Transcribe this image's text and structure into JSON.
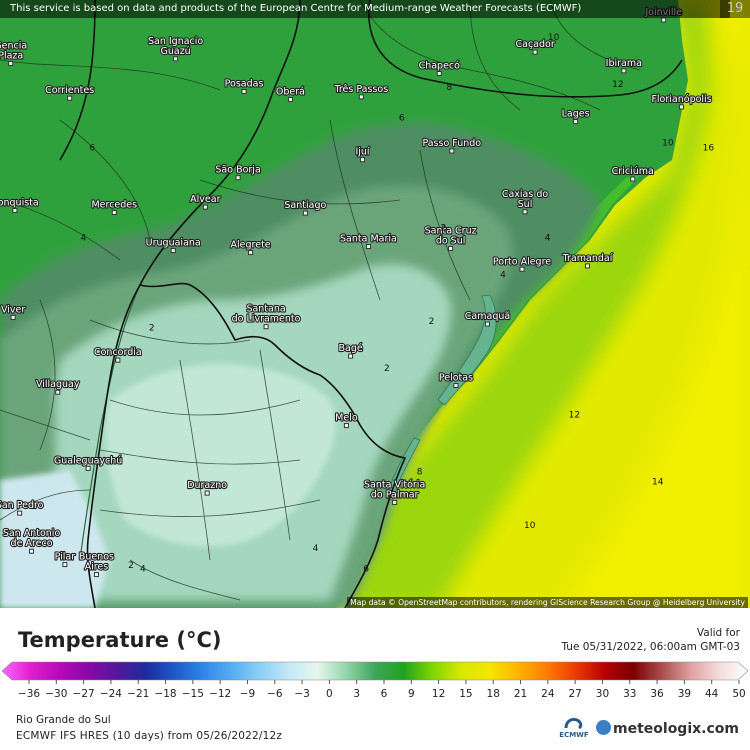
{
  "header": {
    "notice": "This service is based on data and products of the European Centre for Medium-range Weather Forecasts (ECMWF)",
    "corner_number": "19",
    "attribution": "Map data © OpenStreetMap contributors, rendering GIScience Research Group @ Heidelberg University"
  },
  "colors": {
    "ocean_warm": "#d8e600",
    "ocean_yellow": "#f1ee00",
    "coast_band": "#39b729",
    "land_green": "#2f9f3f",
    "land_dark": "#3f8a5a",
    "cold_core": "#a4d7bd",
    "cold_light": "#c2e7d6",
    "border": "#1a1a1a"
  },
  "cities": [
    {
      "name": "San Ignacio\nGuazú",
      "lon": -57.05,
      "lat": -26.88
    },
    {
      "name": "Posadas",
      "lon": -55.9,
      "lat": -27.37
    },
    {
      "name": "Oberá",
      "lon": -55.12,
      "lat": -27.49
    },
    {
      "name": "Três Passos",
      "lon": -53.93,
      "lat": -27.45
    },
    {
      "name": "Chapecó",
      "lon": -52.62,
      "lat": -27.1
    },
    {
      "name": "Caçador",
      "lon": -51.01,
      "lat": -26.78
    },
    {
      "name": "Joinville",
      "lon": -48.85,
      "lat": -26.3
    },
    {
      "name": "Ibirama",
      "lon": -49.52,
      "lat": -27.06
    },
    {
      "name": "Florianópolis",
      "lon": -48.55,
      "lat": -27.6
    },
    {
      "name": "Lages",
      "lon": -50.33,
      "lat": -27.82
    },
    {
      "name": "Criciúma",
      "lon": -49.37,
      "lat": -28.68
    },
    {
      "name": "Corrientes",
      "lon": -58.83,
      "lat": -27.47
    },
    {
      "name": "Passo Fundo",
      "lon": -52.41,
      "lat": -28.26
    },
    {
      "name": "Ijuí",
      "lon": -53.91,
      "lat": -28.39
    },
    {
      "name": "São Borja",
      "lon": -56.0,
      "lat": -28.66
    },
    {
      "name": "Caxias do\nSul",
      "lon": -51.18,
      "lat": -29.17
    },
    {
      "name": "Mercedes",
      "lon": -58.08,
      "lat": -29.18
    },
    {
      "name": "Alvear",
      "lon": -56.55,
      "lat": -29.1
    },
    {
      "name": "Santiago",
      "lon": -54.87,
      "lat": -29.19
    },
    {
      "name": "Santa Maria",
      "lon": -53.81,
      "lat": -29.69
    },
    {
      "name": "Santa Cruz\ndo Sul",
      "lon": -52.43,
      "lat": -29.72
    },
    {
      "name": "Uruguaiana",
      "lon": -57.09,
      "lat": -29.75
    },
    {
      "name": "Alegrete",
      "lon": -55.79,
      "lat": -29.78
    },
    {
      "name": "Porto Alegre",
      "lon": -51.23,
      "lat": -30.03
    },
    {
      "name": "Tramandaí",
      "lon": -50.13,
      "lat": -29.98
    },
    {
      "name": "Santana\ndo Livramento",
      "lon": -55.53,
      "lat": -30.89
    },
    {
      "name": "Camaquã",
      "lon": -51.81,
      "lat": -30.85
    },
    {
      "name": "Concordia",
      "lon": -58.02,
      "lat": -31.39
    },
    {
      "name": "Bagé",
      "lon": -54.11,
      "lat": -31.33
    },
    {
      "name": "Villaguay",
      "lon": -59.03,
      "lat": -31.87
    },
    {
      "name": "Pelotas",
      "lon": -52.34,
      "lat": -31.77
    },
    {
      "name": "Melo",
      "lon": -54.18,
      "lat": -32.37
    },
    {
      "name": "Gualeguaychú",
      "lon": -58.52,
      "lat": -33.01
    },
    {
      "name": "Durazno",
      "lon": -56.52,
      "lat": -33.38
    },
    {
      "name": "Santa Vitória\ndo Palmar",
      "lon": -53.37,
      "lat": -33.52
    },
    {
      "name": "San Antonio\nde Areco",
      "lon": -59.47,
      "lat": -34.25
    },
    {
      "name": "Buenos\nAires",
      "lon": -58.38,
      "lat": -34.6
    },
    {
      "name": "Pilar",
      "lon": -58.91,
      "lat": -34.45
    },
    {
      "name": "San Pedro",
      "lon": -59.67,
      "lat": -33.68
    },
    {
      "name": "Conquista",
      "lon": -59.75,
      "lat": -29.15
    },
    {
      "name": "Viver",
      "lon": -59.78,
      "lat": -30.75
    },
    {
      "name": "Gencia\nPlaza",
      "lon": -59.82,
      "lat": -26.95
    }
  ],
  "isolines": [
    {
      "value": "10",
      "lon": -50.7,
      "lat": -26.6
    },
    {
      "value": "8",
      "lon": -52.45,
      "lat": -27.35
    },
    {
      "value": "12",
      "lon": -49.62,
      "lat": -27.3
    },
    {
      "value": "6",
      "lon": -53.25,
      "lat": -27.8
    },
    {
      "value": "10",
      "lon": -48.78,
      "lat": -28.18
    },
    {
      "value": "16",
      "lon": -48.1,
      "lat": -28.25
    },
    {
      "value": "6",
      "lon": -58.45,
      "lat": -28.25
    },
    {
      "value": "2",
      "lon": -52.55,
      "lat": -29.45
    },
    {
      "value": "4",
      "lon": -58.6,
      "lat": -29.6
    },
    {
      "value": "4",
      "lon": -50.8,
      "lat": -29.6
    },
    {
      "value": "4",
      "lon": -51.55,
      "lat": -30.15
    },
    {
      "value": "2",
      "lon": -57.45,
      "lat": -30.95
    },
    {
      "value": "2",
      "lon": -52.75,
      "lat": -30.85
    },
    {
      "value": "2",
      "lon": -53.5,
      "lat": -31.55
    },
    {
      "value": "12",
      "lon": -50.35,
      "lat": -32.25
    },
    {
      "value": "8",
      "lon": -52.95,
      "lat": -33.1
    },
    {
      "value": "14",
      "lon": -48.95,
      "lat": -33.25
    },
    {
      "value": "10",
      "lon": -51.1,
      "lat": -33.9
    },
    {
      "value": "4",
      "lon": -54.7,
      "lat": -34.25
    },
    {
      "value": "6",
      "lon": -53.85,
      "lat": -34.55
    },
    {
      "value": "4",
      "lon": -57.6,
      "lat": -34.55
    },
    {
      "value": "2",
      "lon": -57.8,
      "lat": -34.5
    }
  ],
  "legend": {
    "title": "Temperature (°C)",
    "valid_label": "Valid for",
    "valid_time": "Tue 05/31/2022, 06:00am GMT-03",
    "tick_labels": [
      "−36",
      "−30",
      "−27",
      "−24",
      "−21",
      "−18",
      "−15",
      "−12",
      "−9",
      "−6",
      "−3",
      "0",
      "3",
      "6",
      "9",
      "12",
      "15",
      "18",
      "21",
      "24",
      "27",
      "30",
      "33",
      "36",
      "39",
      "44",
      "50"
    ],
    "tick_values": [
      -36,
      -30,
      -27,
      -24,
      -21,
      -18,
      -15,
      -12,
      -9,
      -6,
      -3,
      0,
      3,
      6,
      9,
      12,
      15,
      18,
      21,
      24,
      27,
      30,
      33,
      36,
      39,
      44,
      50
    ],
    "stops": [
      {
        "v": -36,
        "c": "#ff66ff"
      },
      {
        "v": -30,
        "c": "#e01fd0"
      },
      {
        "v": -27,
        "c": "#b60ab8"
      },
      {
        "v": -24,
        "c": "#8a07a8"
      },
      {
        "v": -21,
        "c": "#55189c"
      },
      {
        "v": -18,
        "c": "#1e2a9c"
      },
      {
        "v": -15,
        "c": "#1d58c9"
      },
      {
        "v": -12,
        "c": "#2e86e6"
      },
      {
        "v": -9,
        "c": "#55aef2"
      },
      {
        "v": -6,
        "c": "#8ccff5"
      },
      {
        "v": -3,
        "c": "#c3e9f7"
      },
      {
        "v": 0,
        "c": "#e6f6ee"
      },
      {
        "v": 3,
        "c": "#92d6a9"
      },
      {
        "v": 6,
        "c": "#3fa55a"
      },
      {
        "v": 9,
        "c": "#1ea31e"
      },
      {
        "v": 12,
        "c": "#7ed600"
      },
      {
        "v": 15,
        "c": "#d8e800"
      },
      {
        "v": 18,
        "c": "#f6e600"
      },
      {
        "v": 21,
        "c": "#ffb300"
      },
      {
        "v": 24,
        "c": "#ff7c00"
      },
      {
        "v": 27,
        "c": "#ec3a00"
      },
      {
        "v": 30,
        "c": "#b80000"
      },
      {
        "v": 33,
        "c": "#7c0000"
      },
      {
        "v": 36,
        "c": "#aa4d4d"
      },
      {
        "v": 39,
        "c": "#e0a0a0"
      },
      {
        "v": 44,
        "c": "#f4dcdc"
      },
      {
        "v": 50,
        "c": "#ffffff"
      }
    ]
  },
  "footer": {
    "region": "Rio Grande do Sul",
    "model": "ECMWF IFS HRES (10 days) from 05/26/2022/12z",
    "ecmwf_logo": "ECMWF",
    "brand": "meteologix.com",
    "brand_icon": "meteologix-globe-icon"
  }
}
